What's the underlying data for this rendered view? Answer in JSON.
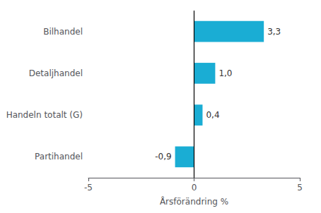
{
  "chart_data": {
    "type": "bar",
    "orientation": "horizontal",
    "categories": [
      "Partihandel",
      "Handeln totalt (G)",
      "Detaljhandel",
      "Bilhandel"
    ],
    "values": [
      -0.9,
      0.4,
      1.0,
      3.3
    ],
    "value_labels": [
      "-0,9",
      "0,4",
      "1,0",
      "3,3"
    ],
    "data_labels": true,
    "color": "#1aadd4",
    "xlabel": "Årsförändring %",
    "xlim": [
      -5,
      5
    ],
    "xticks": [
      -5,
      0,
      5
    ],
    "grid": false
  }
}
